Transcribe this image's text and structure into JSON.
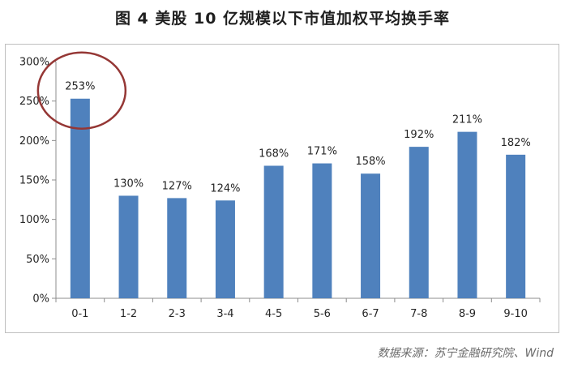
{
  "title": "图 4  美股 10 亿规模以下市值加权平均换手率",
  "source": "数据来源：苏宁金融研究院、Wind",
  "colors": {
    "bar": "#4f81bd",
    "highlight_circle": "#953735",
    "axis": "#8c8c8c",
    "frame": "#bfbfbf"
  },
  "chart_data": {
    "type": "bar",
    "categories": [
      "0-1",
      "1-2",
      "2-3",
      "3-4",
      "4-5",
      "5-6",
      "6-7",
      "7-8",
      "8-9",
      "9-10"
    ],
    "values": [
      253,
      130,
      127,
      124,
      168,
      171,
      158,
      192,
      211,
      182
    ],
    "data_labels": [
      "253%",
      "130%",
      "127%",
      "124%",
      "168%",
      "171%",
      "158%",
      "192%",
      "211%",
      "182%"
    ],
    "y_ticks": [
      "0%",
      "50%",
      "100%",
      "150%",
      "200%",
      "250%",
      "300%"
    ],
    "ylim": [
      0,
      300
    ],
    "grid": false,
    "legend": "none",
    "highlight_category": "0-1"
  }
}
